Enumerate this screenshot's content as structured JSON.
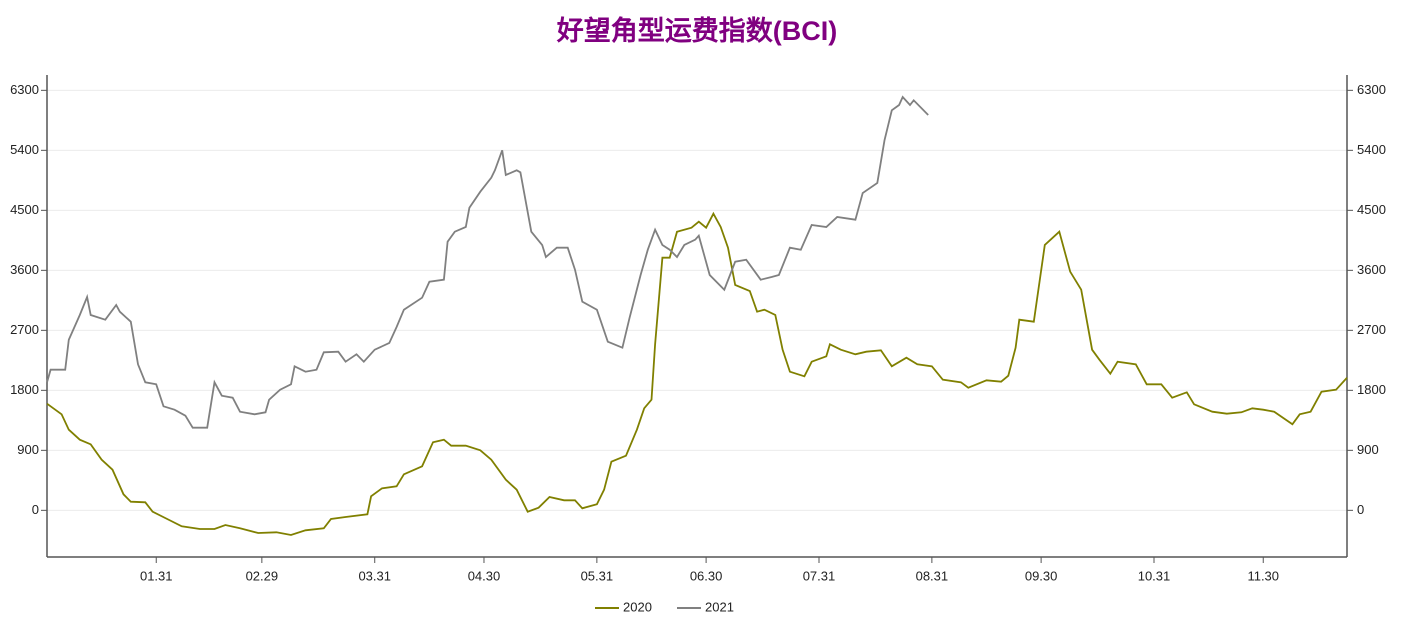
{
  "chart_data": {
    "type": "line",
    "title": "好望角型运费指数(BCI)",
    "xlim": [
      1,
      358
    ],
    "xticks": [
      {
        "value": 31,
        "label": "01.31"
      },
      {
        "value": 60,
        "label": "02.29"
      },
      {
        "value": 91,
        "label": "03.31"
      },
      {
        "value": 121,
        "label": "04.30"
      },
      {
        "value": 152,
        "label": "05.31"
      },
      {
        "value": 182,
        "label": "06.30"
      },
      {
        "value": 213,
        "label": "07.31"
      },
      {
        "value": 244,
        "label": "08.31"
      },
      {
        "value": 274,
        "label": "09.30"
      },
      {
        "value": 305,
        "label": "10.31"
      },
      {
        "value": 335,
        "label": "11.30"
      }
    ],
    "ylim": [
      -700,
      6530
    ],
    "yticks": [
      0,
      900,
      1800,
      2700,
      3600,
      4500,
      5400,
      6300
    ],
    "y2lim": [
      -700,
      6530
    ],
    "y2ticks": [
      0,
      900,
      1800,
      2700,
      3600,
      4500,
      5400,
      6300
    ],
    "grid": true,
    "legend": "bottom",
    "series": [
      {
        "name": "2020",
        "color": "#808000",
        "x": [
          1,
          5,
          7,
          10,
          13,
          16,
          19,
          22,
          24,
          28,
          30,
          34,
          38,
          43,
          47,
          50,
          54,
          59,
          64,
          68,
          72,
          77,
          79,
          83,
          89,
          90,
          93,
          97,
          99,
          104,
          107,
          110,
          112,
          116,
          120,
          123,
          127,
          130,
          133,
          136,
          139,
          143,
          146,
          148,
          152,
          154,
          156,
          160,
          163,
          165,
          167,
          168,
          170,
          172,
          174,
          178,
          180,
          182,
          184,
          186,
          188,
          190,
          194,
          196,
          198,
          201,
          203,
          205,
          209,
          211,
          215,
          216,
          219,
          223,
          226,
          230,
          233,
          237,
          240,
          244,
          247,
          252,
          254,
          259,
          263,
          265,
          267,
          268,
          272,
          275,
          279,
          282,
          285,
          288,
          290,
          293,
          295,
          300,
          303,
          307,
          310,
          314,
          316,
          321,
          325,
          329,
          332,
          335,
          338,
          343,
          345,
          348,
          351,
          355,
          358
        ],
        "values": [
          1600,
          1440,
          1210,
          1060,
          990,
          760,
          610,
          240,
          130,
          120,
          -20,
          -130,
          -240,
          -280,
          -280,
          -220,
          -270,
          -340,
          -330,
          -370,
          -300,
          -270,
          -130,
          -100,
          -60,
          210,
          330,
          360,
          540,
          660,
          1020,
          1060,
          970,
          970,
          900,
          760,
          460,
          310,
          -20,
          40,
          200,
          150,
          150,
          30,
          90,
          310,
          730,
          820,
          1210,
          1530,
          1660,
          2490,
          3790,
          3790,
          4180,
          4240,
          4330,
          4240,
          4450,
          4250,
          3940,
          3380,
          3290,
          2980,
          3010,
          2930,
          2410,
          2080,
          2010,
          2230,
          2310,
          2490,
          2410,
          2340,
          2380,
          2400,
          2160,
          2290,
          2190,
          2160,
          1960,
          1920,
          1840,
          1950,
          1930,
          2020,
          2440,
          2860,
          2830,
          3980,
          4180,
          3580,
          3310,
          2410,
          2260,
          2050,
          2230,
          2190,
          1890,
          1890,
          1690,
          1770,
          1590,
          1480,
          1450,
          1470,
          1530,
          1510,
          1480,
          1290,
          1440,
          1480,
          1780,
          1810,
          1990
        ]
      },
      {
        "name": "2021",
        "color": "#808080",
        "x": [
          1,
          2,
          6,
          7,
          10,
          12,
          13,
          17,
          20,
          21,
          24,
          26,
          28,
          31,
          33,
          36,
          39,
          41,
          45,
          47,
          49,
          52,
          54,
          58,
          61,
          62,
          65,
          68,
          69,
          72,
          75,
          77,
          81,
          83,
          86,
          88,
          91,
          95,
          97,
          99,
          104,
          106,
          110,
          111,
          113,
          116,
          117,
          120,
          123,
          124,
          126,
          127,
          130,
          131,
          134,
          137,
          138,
          141,
          144,
          146,
          148,
          152,
          155,
          159,
          161,
          164,
          166,
          168,
          170,
          172,
          174,
          176,
          179,
          180,
          183,
          187,
          190,
          193,
          197,
          200,
          202,
          205,
          208,
          211,
          215,
          218,
          223,
          225,
          229,
          231,
          233,
          235,
          236,
          238,
          239,
          243
        ],
        "values": [
          1920,
          2110,
          2110,
          2560,
          2930,
          3200,
          2930,
          2860,
          3080,
          2980,
          2830,
          2190,
          1920,
          1890,
          1560,
          1510,
          1420,
          1240,
          1240,
          1920,
          1720,
          1690,
          1480,
          1440,
          1470,
          1660,
          1810,
          1890,
          2160,
          2080,
          2110,
          2370,
          2380,
          2230,
          2340,
          2230,
          2410,
          2510,
          2750,
          3010,
          3190,
          3430,
          3460,
          4030,
          4180,
          4250,
          4540,
          4780,
          4990,
          5100,
          5400,
          5030,
          5100,
          5070,
          4180,
          3980,
          3800,
          3940,
          3940,
          3610,
          3130,
          3010,
          2530,
          2440,
          2890,
          3530,
          3910,
          4210,
          3980,
          3910,
          3800,
          3980,
          4060,
          4120,
          3530,
          3310,
          3730,
          3760,
          3460,
          3500,
          3530,
          3940,
          3910,
          4280,
          4250,
          4400,
          4360,
          4760,
          4910,
          5550,
          6000,
          6080,
          6200,
          6080,
          6150,
          5930
        ]
      }
    ]
  }
}
